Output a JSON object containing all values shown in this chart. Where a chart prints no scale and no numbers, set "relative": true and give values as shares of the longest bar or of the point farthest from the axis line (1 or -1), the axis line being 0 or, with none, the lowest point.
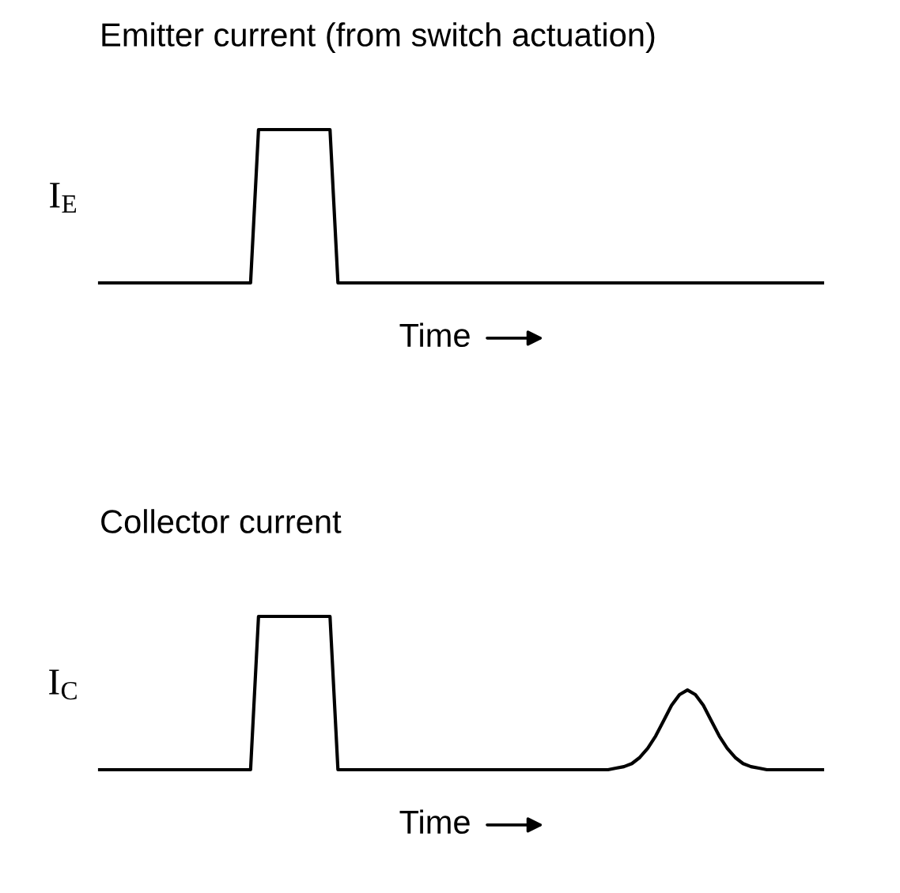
{
  "chart_data": [
    {
      "type": "line",
      "title": "Emitter current (from switch actuation)",
      "xlabel": "Time",
      "ylabel": "I$_{E}$",
      "relative": true,
      "grid": false,
      "legend": false,
      "line_style": "solid",
      "categories": [
        null,
        null,
        null,
        null,
        null,
        null,
        null,
        null,
        null,
        null,
        null,
        null,
        null,
        null,
        null,
        null,
        null,
        null,
        null,
        null,
        null,
        null,
        null,
        null,
        null,
        null,
        null,
        null,
        null,
        null,
        null,
        null,
        null,
        null,
        null,
        null,
        null,
        null,
        null,
        null,
        null,
        null,
        null,
        null,
        null,
        null,
        null,
        null,
        null,
        null,
        null,
        null,
        null,
        null,
        null,
        null,
        null,
        null,
        null,
        null,
        null,
        null,
        null,
        null,
        null,
        null,
        null,
        null,
        null,
        null,
        null,
        null,
        null,
        null,
        null,
        null,
        null,
        null,
        null,
        null,
        null,
        null,
        null,
        null,
        null,
        null,
        null,
        null,
        null,
        null,
        null,
        null
      ],
      "series": [
        {
          "color": "#000000",
          "values": [
            0,
            0,
            0,
            0,
            0,
            0,
            0,
            0,
            0,
            0,
            0,
            0,
            0,
            0,
            0,
            0,
            0,
            0,
            0,
            0,
            1,
            1,
            1,
            1,
            1,
            1,
            1,
            1,
            1,
            1,
            0,
            0,
            0,
            0,
            0,
            0,
            0,
            0,
            0,
            0,
            0,
            0,
            0,
            0,
            0,
            0,
            0,
            0,
            0,
            0,
            0,
            0,
            0,
            0,
            0,
            0,
            0,
            0,
            0,
            0,
            0,
            0,
            0,
            0,
            0,
            0,
            0,
            0,
            0,
            0,
            0,
            0,
            0,
            0,
            0,
            0,
            0,
            0,
            0,
            0,
            0,
            0,
            0,
            0,
            0,
            0,
            0,
            0,
            0,
            0,
            0,
            0
          ]
        }
      ]
    },
    {
      "type": "line",
      "title": "Collector current",
      "xlabel": "Time",
      "ylabel": "I$_{C}$",
      "relative": true,
      "grid": false,
      "legend": false,
      "line_style": "solid",
      "categories": [
        null,
        null,
        null,
        null,
        null,
        null,
        null,
        null,
        null,
        null,
        null,
        null,
        null,
        null,
        null,
        null,
        null,
        null,
        null,
        null,
        null,
        null,
        null,
        null,
        null,
        null,
        null,
        null,
        null,
        null,
        null,
        null,
        null,
        null,
        null,
        null,
        null,
        null,
        null,
        null,
        null,
        null,
        null,
        null,
        null,
        null,
        null,
        null,
        null,
        null,
        null,
        null,
        null,
        null,
        null,
        null,
        null,
        null,
        null,
        null,
        null,
        null,
        null,
        null,
        null,
        null,
        null,
        null,
        null,
        null,
        null,
        null,
        null,
        null,
        null,
        null,
        null,
        null,
        null,
        null,
        null,
        null,
        null,
        null,
        null,
        null,
        null,
        null,
        null,
        null,
        null,
        null
      ],
      "series": [
        {
          "color": "#000000",
          "values": [
            0,
            0,
            0,
            0,
            0,
            0,
            0,
            0,
            0,
            0,
            0,
            0,
            0,
            0,
            0,
            0,
            0,
            0,
            0,
            0,
            1,
            1,
            1,
            1,
            1,
            1,
            1,
            1,
            1,
            1,
            0,
            0,
            0,
            0,
            0,
            0,
            0,
            0,
            0,
            0,
            0,
            0,
            0,
            0,
            0,
            0,
            0,
            0,
            0,
            0,
            0,
            0,
            0,
            0,
            0,
            0,
            0,
            0,
            0,
            0,
            0,
            0,
            0,
            0,
            0,
            0.01,
            0.02,
            0.04,
            0.08,
            0.14,
            0.22,
            0.32,
            0.42,
            0.49,
            0.52,
            0.49,
            0.42,
            0.32,
            0.22,
            0.14,
            0.08,
            0.04,
            0.02,
            0.01,
            0,
            0,
            0,
            0,
            0,
            0,
            0,
            0
          ]
        }
      ]
    }
  ]
}
